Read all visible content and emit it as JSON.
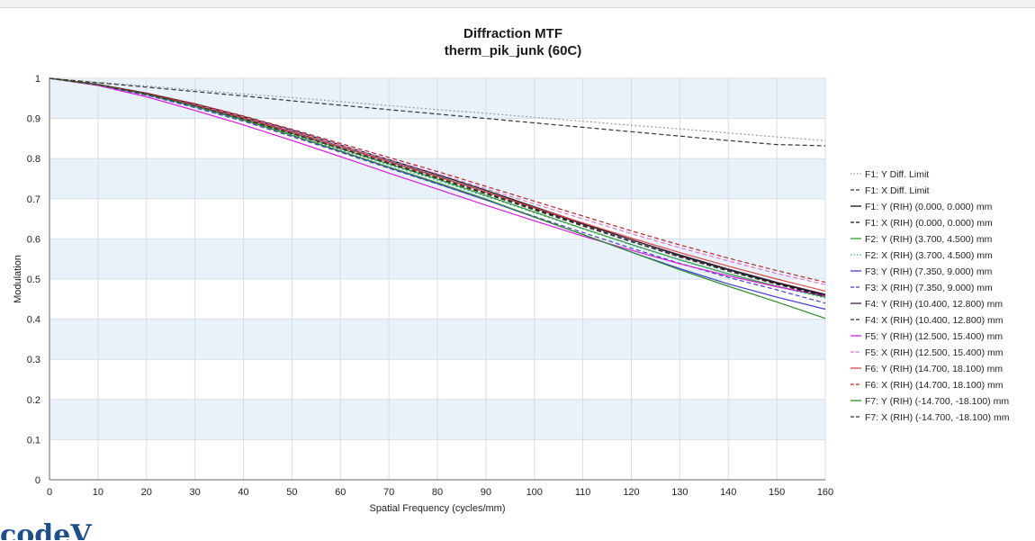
{
  "logo": {
    "text": "codeV"
  },
  "chart_data": {
    "type": "line",
    "title": "Diffraction MTF",
    "subtitle": "therm_pik_junk (60C)",
    "xlabel": "Spatial Frequency (cycles/mm)",
    "ylabel": "Modulation",
    "xlim": [
      0,
      160
    ],
    "ylim": [
      0,
      1
    ],
    "xticks": [
      0,
      10,
      20,
      30,
      40,
      50,
      60,
      70,
      80,
      90,
      100,
      110,
      120,
      130,
      140,
      150,
      160
    ],
    "yticks": [
      0,
      0.1,
      0.2,
      0.3,
      0.4,
      0.5,
      0.6,
      0.7,
      0.8,
      0.9,
      1
    ],
    "grid": true,
    "legend_position": "right",
    "x": [
      0,
      10,
      20,
      30,
      40,
      50,
      60,
      70,
      80,
      90,
      100,
      110,
      120,
      130,
      140,
      150,
      160
    ],
    "series": [
      {
        "name": "F1: Y Diff. Limit",
        "color": "#999999",
        "dash": "dotted",
        "values": [
          1.0,
          0.99,
          0.981,
          0.971,
          0.961,
          0.952,
          0.942,
          0.932,
          0.922,
          0.913,
          0.903,
          0.893,
          0.883,
          0.874,
          0.864,
          0.854,
          0.845
        ]
      },
      {
        "name": "F1: X Diff. Limit",
        "color": "#333333",
        "dash": "dashed",
        "values": [
          1.0,
          0.989,
          0.978,
          0.967,
          0.956,
          0.944,
          0.933,
          0.922,
          0.911,
          0.9,
          0.889,
          0.878,
          0.867,
          0.856,
          0.845,
          0.835,
          0.832
        ]
      },
      {
        "name": "F1: Y (RIH) (0.000, 0.000) mm",
        "color": "#111111",
        "dash": "solid",
        "values": [
          1.0,
          0.985,
          0.963,
          0.936,
          0.905,
          0.871,
          0.834,
          0.797,
          0.76,
          0.721,
          0.68,
          0.639,
          0.598,
          0.558,
          0.523,
          0.49,
          0.46
        ]
      },
      {
        "name": "F1: X (RIH) (0.000, 0.000) mm",
        "color": "#111111",
        "dash": "dashed",
        "values": [
          1.0,
          0.984,
          0.961,
          0.933,
          0.901,
          0.866,
          0.829,
          0.792,
          0.755,
          0.716,
          0.675,
          0.634,
          0.594,
          0.555,
          0.52,
          0.488,
          0.458
        ]
      },
      {
        "name": "F2: Y (RIH) (3.700, 4.500) mm",
        "color": "#2e9a2e",
        "dash": "solid",
        "values": [
          1.0,
          0.984,
          0.961,
          0.932,
          0.899,
          0.863,
          0.825,
          0.787,
          0.749,
          0.708,
          0.667,
          0.626,
          0.586,
          0.548,
          0.513,
          0.482,
          0.455
        ]
      },
      {
        "name": "F2: X (RIH) (3.700, 4.500) mm",
        "color": "#44aa88",
        "dash": "dotted",
        "values": [
          1.0,
          0.983,
          0.959,
          0.929,
          0.896,
          0.86,
          0.822,
          0.784,
          0.746,
          0.706,
          0.665,
          0.625,
          0.585,
          0.547,
          0.512,
          0.481,
          0.453
        ]
      },
      {
        "name": "F3: Y (RIH) (7.350, 9.000) mm",
        "color": "#3a3ad0",
        "dash": "solid",
        "values": [
          1.0,
          0.984,
          0.96,
          0.93,
          0.896,
          0.858,
          0.818,
          0.778,
          0.738,
          0.697,
          0.654,
          0.611,
          0.567,
          0.526,
          0.488,
          0.455,
          0.425
        ]
      },
      {
        "name": "F3: X (RIH) (7.350, 9.000) mm",
        "color": "#4b3fc8",
        "dash": "dashed",
        "values": [
          1.0,
          0.983,
          0.958,
          0.927,
          0.893,
          0.855,
          0.816,
          0.776,
          0.737,
          0.697,
          0.656,
          0.616,
          0.577,
          0.539,
          0.504,
          0.473,
          0.44
        ]
      },
      {
        "name": "F4: Y (RIH) (10.400, 12.800) mm",
        "color": "#3b1f3b",
        "dash": "solid",
        "values": [
          1.0,
          0.985,
          0.962,
          0.934,
          0.902,
          0.867,
          0.83,
          0.793,
          0.756,
          0.717,
          0.677,
          0.637,
          0.598,
          0.56,
          0.525,
          0.492,
          0.462
        ]
      },
      {
        "name": "F4: X (RIH) (10.400, 12.800) mm",
        "color": "#2a2a2a",
        "dash": "dashed",
        "values": [
          1.0,
          0.984,
          0.96,
          0.931,
          0.898,
          0.862,
          0.825,
          0.788,
          0.751,
          0.712,
          0.672,
          0.632,
          0.593,
          0.555,
          0.52,
          0.487,
          0.457
        ]
      },
      {
        "name": "F5: Y (RIH) (12.500, 15.400) mm",
        "color": "#d81bd8",
        "dash": "solid",
        "values": [
          1.0,
          0.982,
          0.954,
          0.92,
          0.884,
          0.845,
          0.805,
          0.764,
          0.724,
          0.684,
          0.645,
          0.607,
          0.572,
          0.538,
          0.508,
          0.481,
          0.458
        ]
      },
      {
        "name": "F5: X (RIH) (12.500, 15.400) mm",
        "color": "#e070d0",
        "dash": "dashed",
        "values": [
          1.0,
          0.984,
          0.962,
          0.935,
          0.904,
          0.87,
          0.834,
          0.798,
          0.762,
          0.725,
          0.687,
          0.65,
          0.613,
          0.578,
          0.545,
          0.514,
          0.486
        ]
      },
      {
        "name": "F6: Y (RIH) (14.700, 18.100) mm",
        "color": "#d84848",
        "dash": "solid",
        "values": [
          1.0,
          0.984,
          0.961,
          0.933,
          0.901,
          0.866,
          0.829,
          0.792,
          0.755,
          0.717,
          0.678,
          0.64,
          0.602,
          0.566,
          0.532,
          0.5,
          0.47
        ]
      },
      {
        "name": "F6: X (RIH) (14.700, 18.100) mm",
        "color": "#b02828",
        "dash": "dashed",
        "values": [
          1.0,
          0.985,
          0.963,
          0.937,
          0.906,
          0.873,
          0.838,
          0.803,
          0.768,
          0.731,
          0.694,
          0.657,
          0.62,
          0.585,
          0.552,
          0.521,
          0.492
        ]
      },
      {
        "name": "F7: Y (RIH) (-14.700, -18.100) mm",
        "color": "#2e8b2e",
        "dash": "solid",
        "values": [
          1.0,
          0.984,
          0.96,
          0.93,
          0.896,
          0.858,
          0.819,
          0.779,
          0.74,
          0.699,
          0.655,
          0.611,
          0.567,
          0.523,
          0.482,
          0.443,
          0.402
        ]
      },
      {
        "name": "F7: X (RIH) (-14.700, -18.100) mm",
        "color": "#333333",
        "dash": "dashed",
        "values": [
          1.0,
          0.984,
          0.961,
          0.932,
          0.899,
          0.863,
          0.826,
          0.789,
          0.752,
          0.714,
          0.674,
          0.634,
          0.594,
          0.555,
          0.52,
          0.487,
          0.456
        ]
      }
    ]
  }
}
